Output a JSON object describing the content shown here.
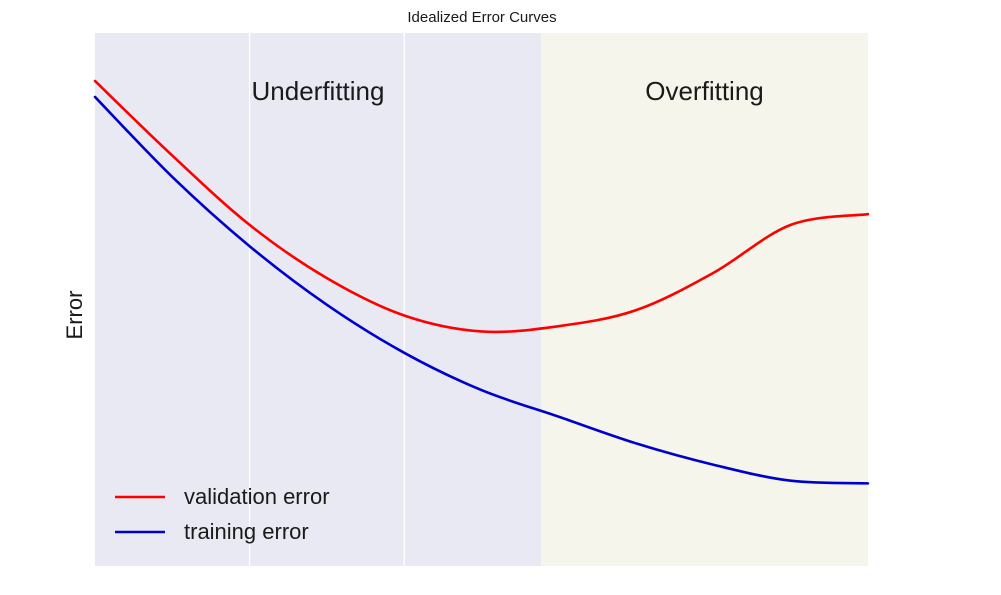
{
  "chart_data": {
    "type": "line",
    "title": "Idealized Error Curves",
    "xlabel": "",
    "ylabel": "Error",
    "xlim": [
      0,
      1
    ],
    "ylim": [
      0,
      1
    ],
    "grid": true,
    "show_ticks": false,
    "regions": [
      {
        "label": "Underfitting",
        "x_range": [
          0,
          0.577
        ],
        "color": "#e8e9f2"
      },
      {
        "label": "Overfitting",
        "x_range": [
          0.577,
          1.0
        ],
        "color": "#f5f5eb"
      }
    ],
    "series": [
      {
        "name": "validation error",
        "color": "#ff0000",
        "x": [
          0,
          0.1,
          0.2,
          0.3,
          0.4,
          0.5,
          0.6,
          0.7,
          0.8,
          0.9,
          1.0
        ],
        "y": [
          0.91,
          0.77,
          0.64,
          0.54,
          0.47,
          0.44,
          0.45,
          0.48,
          0.55,
          0.64,
          0.66
        ]
      },
      {
        "name": "training error",
        "color": "#0000cc",
        "x": [
          0,
          0.1,
          0.2,
          0.3,
          0.4,
          0.5,
          0.6,
          0.7,
          0.8,
          0.9,
          1.0
        ],
        "y": [
          0.88,
          0.73,
          0.6,
          0.49,
          0.4,
          0.33,
          0.28,
          0.23,
          0.19,
          0.16,
          0.155
        ]
      }
    ],
    "legend": {
      "placement": "bottom-left",
      "entries": [
        "validation error",
        "training error"
      ]
    }
  }
}
